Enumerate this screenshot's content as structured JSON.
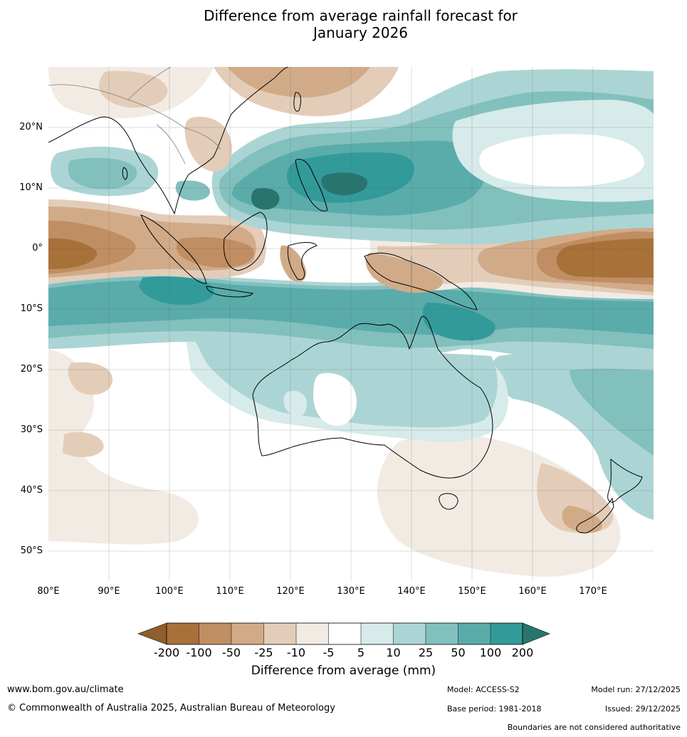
{
  "title_line1": "Difference from average rainfall forecast for",
  "title_line2": "January 2026",
  "palette": {
    "n200": "#a8713a",
    "n100": "#c08e62",
    "n50": "#d1ab88",
    "n25": "#e3cdb9",
    "n10": "#f2ebe4",
    "zero": "#ffffff",
    "p5": "#d6ebea",
    "p10": "#abd5d4",
    "p25": "#82c0be",
    "p50": "#5aacab",
    "p100": "#329b99",
    "p200": "#287570"
  },
  "lat_labels": [
    "20°N",
    "10°N",
    "0°",
    "10°S",
    "20°S",
    "30°S",
    "40°S",
    "50°S"
  ],
  "lon_labels": [
    "80°E",
    "90°E",
    "100°E",
    "110°E",
    "120°E",
    "130°E",
    "140°E",
    "150°E",
    "160°E",
    "170°E"
  ],
  "colorbar_title": "Difference from average (mm)",
  "colorbar_ticks": [
    "-200",
    "-100",
    "-50",
    "-25",
    "-10",
    "-5",
    "5",
    "10",
    "25",
    "50",
    "100",
    "200"
  ],
  "footer": {
    "url": "www.bom.gov.au/climate",
    "copyright": "© Commonwealth of Australia 2025, Australian Bureau of Meteorology",
    "model": "Model: ACCESS-S2",
    "model_run": "Model run: 27/12/2025",
    "base_period": "Base period: 1981-2018",
    "issued": "Issued: 29/12/2025",
    "disclaimer": "Boundaries are not considered authoritative"
  }
}
